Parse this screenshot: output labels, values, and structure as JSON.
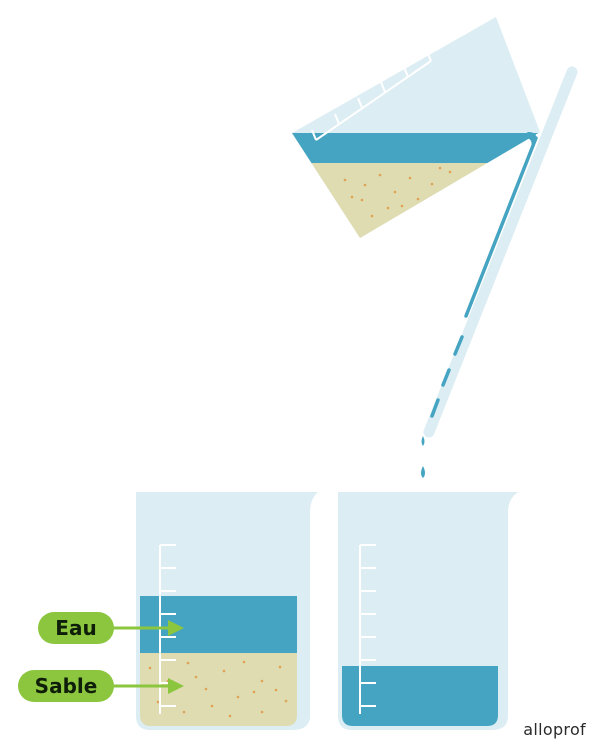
{
  "labels": {
    "water": "Eau",
    "sand": "Sable"
  },
  "brand": "alloprof",
  "colors": {
    "glass": "#dcedf3",
    "glass_edge": "#c7e1ea",
    "water": "#45a4c2",
    "sand": "#dedcb0",
    "sand_dot": "#e0a255",
    "scale": "#ffffff",
    "label_bg": "#8cc63f",
    "label_text": "#0e1e08",
    "arrow": "#8cc63f"
  }
}
